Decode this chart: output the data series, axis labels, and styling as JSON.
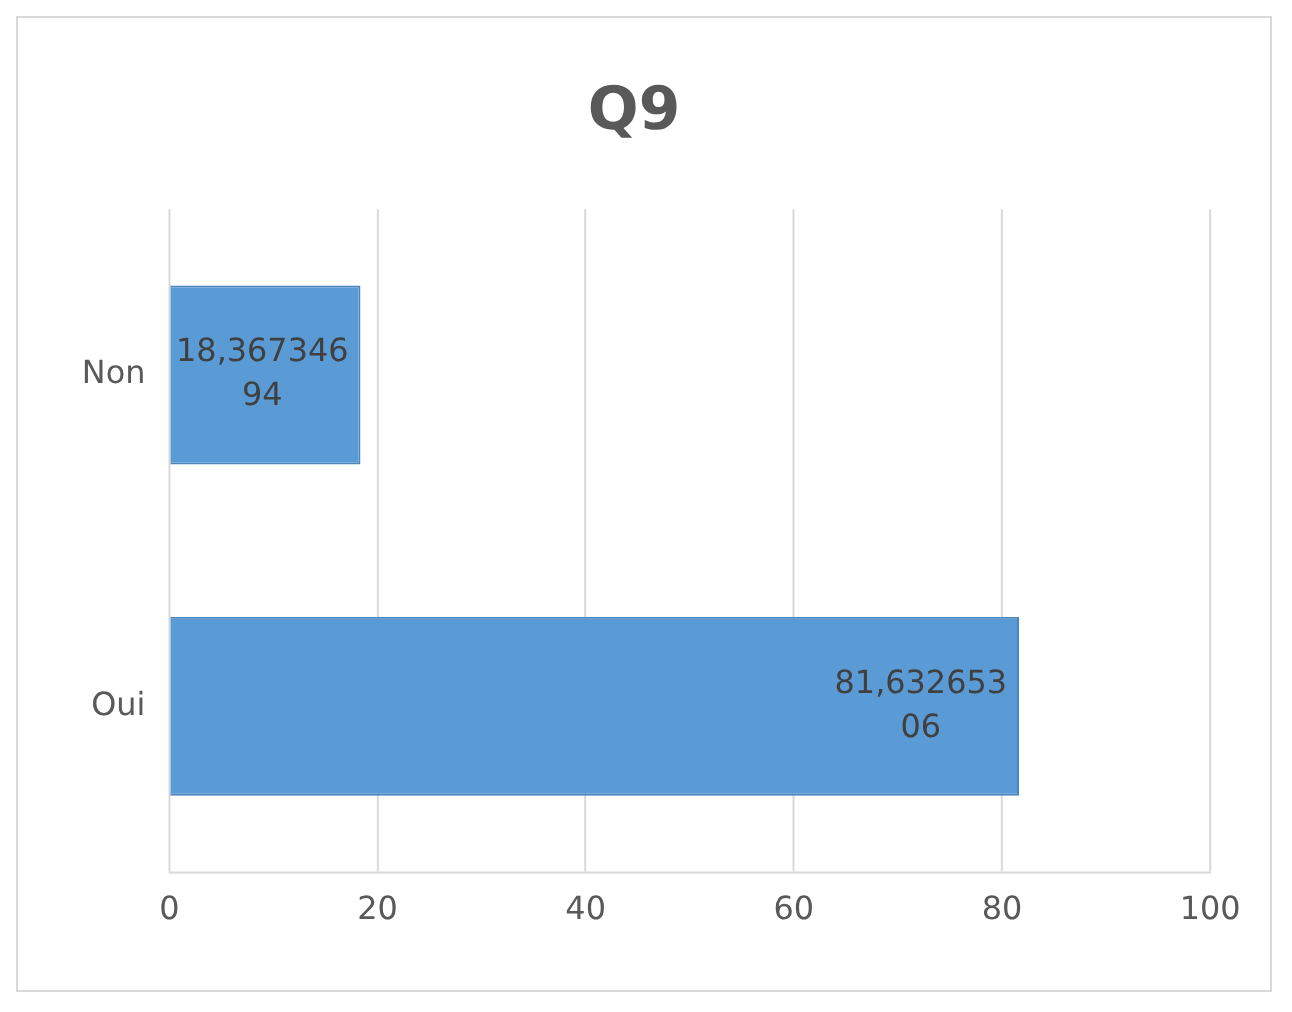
{
  "chart_data": {
    "type": "bar",
    "orientation": "horizontal",
    "title": "Q9",
    "categories": [
      "Non",
      "Oui"
    ],
    "values": [
      18.36734694,
      81.63265306
    ],
    "value_labels": [
      "18,36734694",
      "81,63265306"
    ],
    "color": "#5b9bd5",
    "xlim": [
      0,
      100
    ],
    "xticks": [
      0,
      20,
      40,
      60,
      80,
      100
    ],
    "grid": "x",
    "legend": false
  }
}
